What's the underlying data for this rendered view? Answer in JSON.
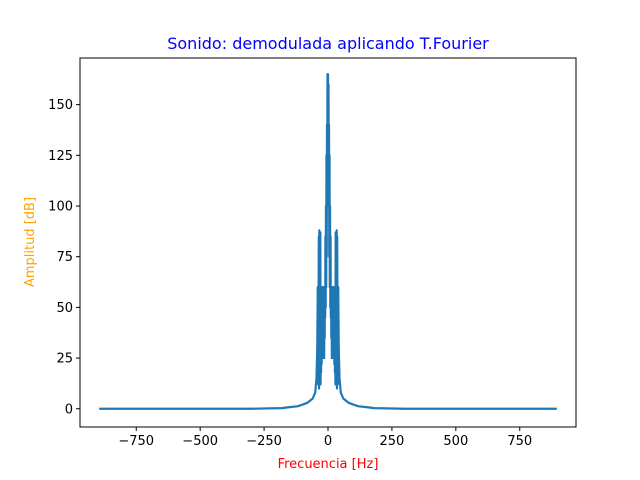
{
  "chart_data": {
    "type": "line",
    "title": "Sonido: demodulada aplicando T.Fourier",
    "xlabel": "Frecuencia [Hz]",
    "ylabel": "Amplitud [dB]",
    "xlim": [
      -970,
      970
    ],
    "ylim": [
      -9,
      173
    ],
    "xticks": [
      -750,
      -500,
      -250,
      0,
      250,
      500,
      750
    ],
    "xtick_labels": [
      "−750",
      "−500",
      "−250",
      "0",
      "250",
      "500",
      "750"
    ],
    "yticks": [
      0,
      25,
      50,
      75,
      100,
      125,
      150
    ],
    "ytick_labels": [
      "0",
      "25",
      "50",
      "75",
      "100",
      "125",
      "150"
    ],
    "grid": false,
    "series": [
      {
        "color": "#1f77b4",
        "x": [
          -895,
          -600,
          -300,
          -180,
          -150,
          -120,
          -100,
          -80,
          -60,
          -50,
          -45,
          -42,
          -40,
          -38,
          -36,
          -35,
          -34,
          -33,
          -32,
          -31,
          -30,
          -29,
          -28,
          -27,
          -26,
          -25,
          -24,
          -23,
          -22,
          -21,
          -20,
          -19,
          -18,
          -17,
          -16,
          -15,
          -14,
          -13,
          -12,
          -11,
          -10,
          -9,
          -8,
          -7,
          -6,
          -5,
          -4,
          -3,
          -2,
          -1,
          0,
          1,
          2,
          3,
          4,
          5,
          6,
          7,
          8,
          9,
          10,
          11,
          12,
          13,
          14,
          15,
          16,
          17,
          18,
          19,
          20,
          21,
          22,
          23,
          24,
          25,
          26,
          27,
          28,
          29,
          30,
          31,
          32,
          33,
          34,
          35,
          36,
          38,
          40,
          42,
          45,
          50,
          60,
          80,
          100,
          120,
          150,
          180,
          300,
          600,
          895
        ],
        "y": [
          0,
          0,
          0,
          0.3,
          0.8,
          1.2,
          2,
          3,
          5,
          8,
          15,
          30,
          60,
          12,
          85,
          10,
          88,
          15,
          60,
          20,
          87,
          12,
          55,
          18,
          60,
          22,
          30,
          60,
          25,
          40,
          60,
          28,
          55,
          30,
          60,
          25,
          60,
          35,
          60,
          45,
          85,
          50,
          100,
          60,
          125,
          75,
          140,
          100,
          165,
          120,
          165,
          125,
          160,
          100,
          140,
          75,
          125,
          60,
          100,
          50,
          85,
          45,
          60,
          35,
          60,
          25,
          60,
          30,
          55,
          28,
          60,
          40,
          25,
          60,
          30,
          22,
          60,
          18,
          55,
          12,
          87,
          20,
          60,
          15,
          88,
          10,
          85,
          12,
          60,
          30,
          15,
          8,
          5,
          3,
          2,
          1.2,
          0.8,
          0.3,
          0,
          0,
          0
        ]
      }
    ]
  }
}
